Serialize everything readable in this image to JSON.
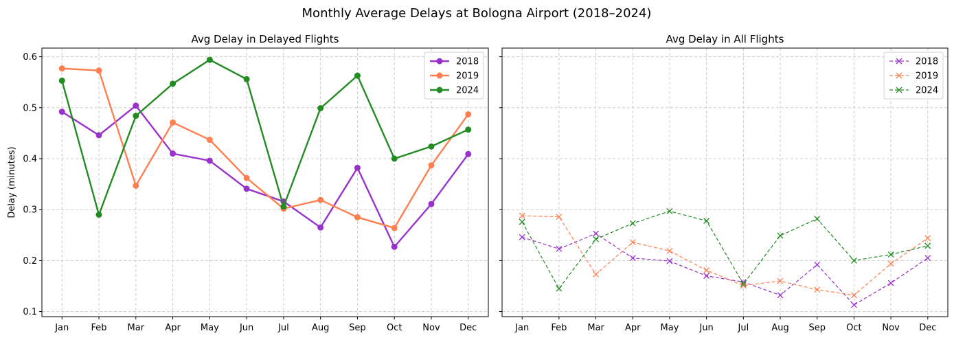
{
  "figure": {
    "title": "Monthly Average Delays at Bologna Airport (2018–2024)"
  },
  "colors": {
    "2018": "#9932CC",
    "2019": "#FF7F50",
    "2024": "#228B22"
  },
  "chart_data": [
    {
      "type": "line",
      "title": "Avg Delay in Delayed Flights",
      "xlabel": "",
      "ylabel": "Delay (minutes)",
      "categories": [
        "Jan",
        "Feb",
        "Mar",
        "Apr",
        "May",
        "Jun",
        "Jul",
        "Aug",
        "Sep",
        "Oct",
        "Nov",
        "Dec"
      ],
      "ylim": [
        0.09,
        0.617
      ],
      "yticks": [
        "0.1",
        "0.2",
        "0.3",
        "0.4",
        "0.5",
        "0.6"
      ],
      "grid": true,
      "legend": "top-right",
      "marker": "circle",
      "line_style": "solid",
      "series": [
        {
          "name": "2018",
          "values": [
            0.492,
            0.446,
            0.504,
            0.41,
            0.396,
            0.341,
            0.316,
            0.265,
            0.382,
            0.227,
            0.311,
            0.409
          ]
        },
        {
          "name": "2019",
          "values": [
            0.577,
            0.573,
            0.347,
            0.471,
            0.437,
            0.362,
            0.302,
            0.319,
            0.285,
            0.264,
            0.387,
            0.487
          ]
        },
        {
          "name": "2024",
          "values": [
            0.553,
            0.29,
            0.484,
            0.547,
            0.594,
            0.556,
            0.306,
            0.499,
            0.563,
            0.4,
            0.424,
            0.457
          ]
        }
      ]
    },
    {
      "type": "line",
      "title": "Avg Delay in All Flights",
      "xlabel": "",
      "ylabel": "",
      "categories": [
        "Jan",
        "Feb",
        "Mar",
        "Apr",
        "May",
        "Jun",
        "Jul",
        "Aug",
        "Sep",
        "Oct",
        "Nov",
        "Dec"
      ],
      "ylim": [
        0.09,
        0.617
      ],
      "yticks": [
        "0.1",
        "0.2",
        "0.3",
        "0.4",
        "0.5",
        "0.6"
      ],
      "shared_y": true,
      "grid": true,
      "legend": "top-right",
      "marker": "x",
      "line_style": "dashed",
      "series": [
        {
          "name": "2018",
          "values": [
            0.246,
            0.223,
            0.253,
            0.205,
            0.199,
            0.17,
            0.158,
            0.132,
            0.192,
            0.113,
            0.156,
            0.205
          ]
        },
        {
          "name": "2019",
          "values": [
            0.288,
            0.286,
            0.173,
            0.236,
            0.219,
            0.181,
            0.151,
            0.16,
            0.143,
            0.132,
            0.194,
            0.244
          ]
        },
        {
          "name": "2024",
          "values": [
            0.276,
            0.145,
            0.242,
            0.273,
            0.297,
            0.278,
            0.154,
            0.249,
            0.282,
            0.2,
            0.212,
            0.229
          ]
        }
      ]
    }
  ]
}
